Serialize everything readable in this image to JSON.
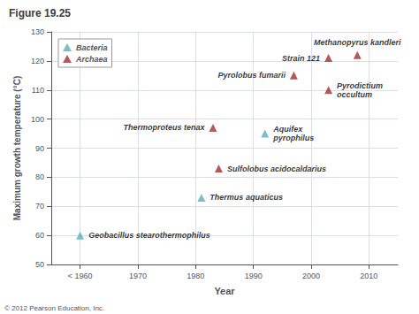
{
  "chart_data": {
    "type": "scatter",
    "title": "Figure 19.25",
    "xlabel": "Year",
    "ylabel": "Maximum growth temperature (°C)",
    "annotations": [
      "© 2012 Pearson Education, Inc."
    ],
    "xlim": [
      1955,
      2015
    ],
    "xticks": [
      {
        "value": 1960,
        "label": "< 1960"
      },
      1970,
      1980,
      1990,
      2000,
      2010
    ],
    "ylim": [
      50,
      130
    ],
    "yticks": [
      50,
      60,
      70,
      80,
      90,
      100,
      110,
      120,
      130
    ],
    "grid": true,
    "legend": "upper left",
    "series": [
      {
        "name": "Bacteria",
        "color": "#5aaebd",
        "marker": "triangle",
        "x": [
          1960,
          1981,
          1992
        ],
        "y": [
          60,
          73,
          95
        ],
        "labels": [
          "Geobacillus stearothermophilus",
          "Thermus aquaticus",
          "Aquifex\npyrophilus"
        ]
      },
      {
        "name": "Archaea",
        "color": "#a03030",
        "marker": "triangle",
        "x": [
          1983,
          1984,
          2003,
          1997,
          2003,
          2008
        ],
        "y": [
          97,
          83,
          110,
          115,
          121,
          122
        ],
        "labels": [
          "Thermoproteus tenax",
          "Sulfolobus acidocaldarius",
          "Pyrodictium\noccultum",
          "Pyrolobus fumarii",
          "Strain 121",
          "Methanopyrus kandleri"
        ]
      }
    ]
  }
}
